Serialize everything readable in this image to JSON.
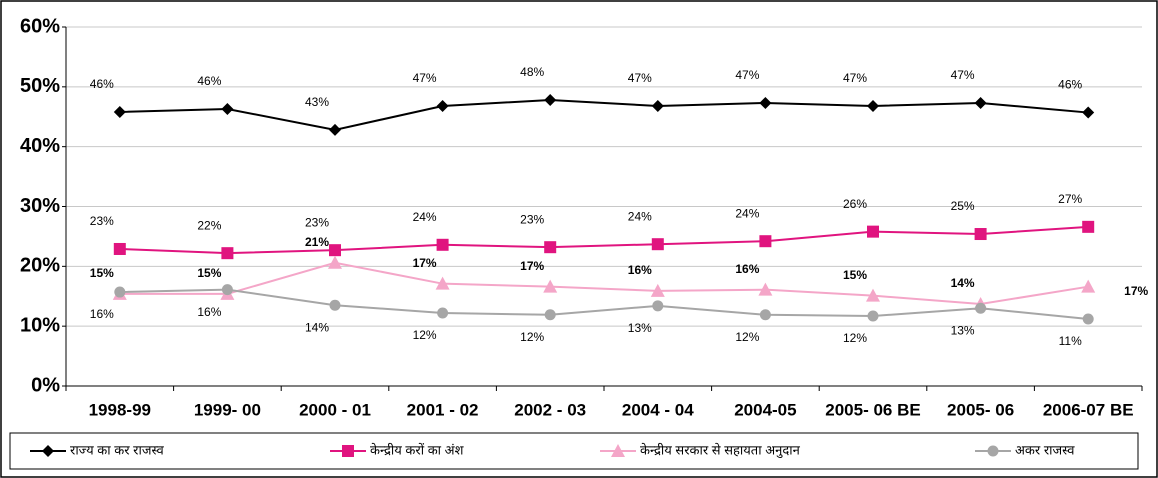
{
  "chart_data": {
    "type": "line",
    "categories": [
      "1998-99",
      "1999- 00",
      "2000 - 01",
      "2001 - 02",
      "2002 - 03",
      "2004 - 04",
      "2004-05",
      "2005- 06 BE",
      "2005- 06",
      "2006-07 BE"
    ],
    "series": [
      {
        "name": "राज्य का कर राजस्व",
        "color": "#000000",
        "marker": "diamond",
        "values": [
          45.8,
          46.3,
          42.8,
          46.8,
          47.8,
          46.8,
          47.3,
          46.8,
          47.3,
          45.7
        ],
        "value_labels": [
          "46%",
          "46%",
          "43%",
          "47%",
          "48%",
          "47%",
          "47%",
          "47%",
          "47%",
          "46%"
        ]
      },
      {
        "name": "केन्द्रीय करों का अंश",
        "color": "#e0147f",
        "marker": "square",
        "values": [
          22.9,
          22.2,
          22.7,
          23.6,
          23.2,
          23.7,
          24.2,
          25.8,
          25.4,
          26.6
        ],
        "value_labels": [
          "23%",
          "22%",
          "23%",
          "24%",
          "23%",
          "24%",
          "24%",
          "26%",
          "25%",
          "27%"
        ]
      },
      {
        "name": "केन्द्रीय सरकार से सहायता अनुदान",
        "color": "#f4a6c8",
        "marker": "triangle",
        "values": [
          15.4,
          15.4,
          20.6,
          17.1,
          16.6,
          15.9,
          16.1,
          15.1,
          13.7,
          16.6
        ],
        "value_labels": [
          "15%",
          "15%",
          "21%",
          "17%",
          "17%",
          "16%",
          "16%",
          "15%",
          "14%",
          "17%"
        ]
      },
      {
        "name": "अकर राजस्व",
        "color": "#a6a6a6",
        "marker": "circle",
        "values": [
          15.7,
          16.1,
          13.5,
          12.2,
          11.9,
          13.4,
          11.9,
          11.7,
          13.0,
          11.2
        ],
        "value_labels": [
          "16%",
          "16%",
          "14%",
          "12%",
          "12%",
          "13%",
          "12%",
          "12%",
          "13%",
          "11%"
        ]
      }
    ],
    "ylim": [
      0,
      60
    ],
    "yticks": [
      {
        "value": 0,
        "label": "0%"
      },
      {
        "value": 10,
        "label": "10%"
      },
      {
        "value": 20,
        "label": "20%"
      },
      {
        "value": 30,
        "label": "30%"
      },
      {
        "value": 40,
        "label": "40%"
      },
      {
        "value": 50,
        "label": "50%"
      },
      {
        "value": 60,
        "label": "60%"
      }
    ],
    "grid": true,
    "legend": "bottom"
  }
}
